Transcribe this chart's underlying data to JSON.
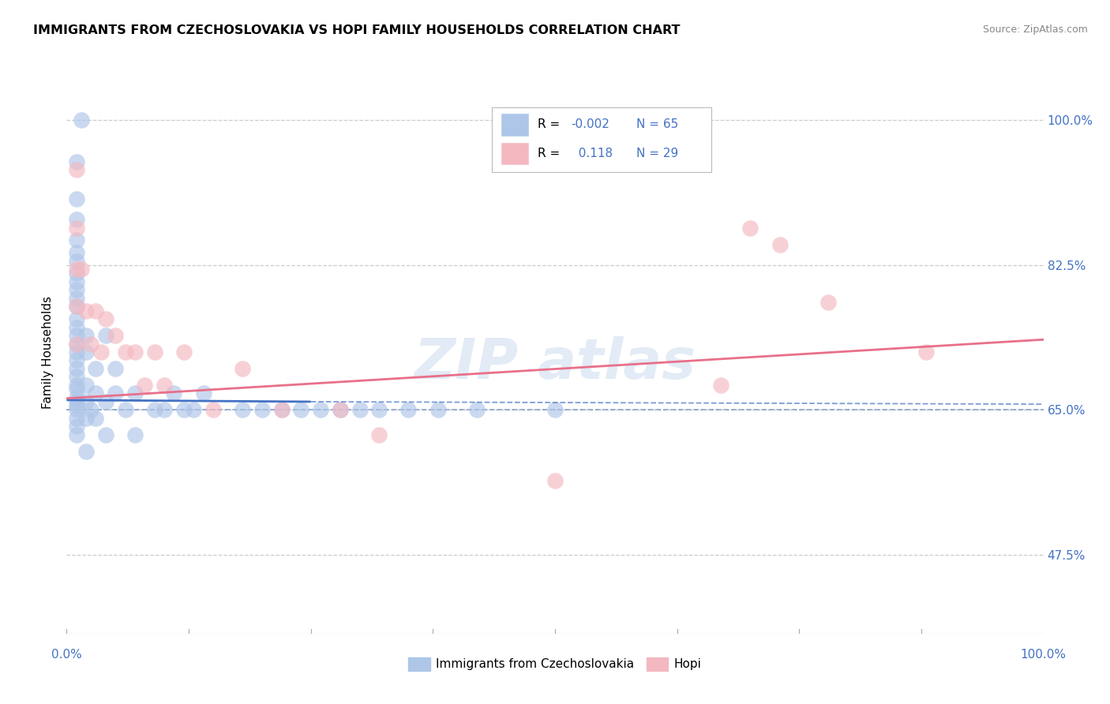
{
  "title": "IMMIGRANTS FROM CZECHOSLOVAKIA VS HOPI FAMILY HOUSEHOLDS CORRELATION CHART",
  "source": "Source: ZipAtlas.com",
  "ylabel": "Family Households",
  "y_ticks_labels": [
    "47.5%",
    "65.0%",
    "82.5%",
    "100.0%"
  ],
  "y_tick_vals": [
    0.475,
    0.65,
    0.825,
    1.0
  ],
  "xlim": [
    0.0,
    1.0
  ],
  "ylim": [
    0.38,
    1.06
  ],
  "legend_blue_label": "Immigrants from Czechoslovakia",
  "legend_pink_label": "Hopi",
  "blue_color": "#aec6e8",
  "pink_color": "#f4b8c1",
  "blue_line_color": "#4472c4",
  "pink_line_color": "#e8708a",
  "dashed_line_color": "#4472c4",
  "watermark_color": "#c0d4ec",
  "background_color": "#ffffff",
  "grid_color": "#c8c8c8",
  "blue_scatter_x": [
    0.015,
    0.01,
    0.01,
    0.01,
    0.01,
    0.01,
    0.01,
    0.01,
    0.01,
    0.01,
    0.01,
    0.01,
    0.01,
    0.01,
    0.01,
    0.01,
    0.01,
    0.01,
    0.01,
    0.01,
    0.01,
    0.01,
    0.01,
    0.01,
    0.01,
    0.01,
    0.01,
    0.01,
    0.01,
    0.02,
    0.02,
    0.02,
    0.02,
    0.02,
    0.02,
    0.025,
    0.03,
    0.03,
    0.03,
    0.04,
    0.04,
    0.04,
    0.05,
    0.05,
    0.06,
    0.07,
    0.07,
    0.09,
    0.1,
    0.11,
    0.12,
    0.13,
    0.14,
    0.18,
    0.2,
    0.22,
    0.24,
    0.26,
    0.28,
    0.3,
    0.32,
    0.35,
    0.38,
    0.42,
    0.5
  ],
  "blue_scatter_y": [
    1.0,
    0.95,
    0.905,
    0.88,
    0.855,
    0.84,
    0.83,
    0.815,
    0.805,
    0.795,
    0.785,
    0.775,
    0.76,
    0.75,
    0.74,
    0.73,
    0.72,
    0.71,
    0.7,
    0.69,
    0.68,
    0.675,
    0.665,
    0.66,
    0.655,
    0.65,
    0.64,
    0.63,
    0.62,
    0.74,
    0.72,
    0.68,
    0.66,
    0.64,
    0.6,
    0.65,
    0.7,
    0.67,
    0.64,
    0.74,
    0.66,
    0.62,
    0.7,
    0.67,
    0.65,
    0.67,
    0.62,
    0.65,
    0.65,
    0.67,
    0.65,
    0.65,
    0.67,
    0.65,
    0.65,
    0.65,
    0.65,
    0.65,
    0.65,
    0.65,
    0.65,
    0.65,
    0.65,
    0.65,
    0.65
  ],
  "pink_scatter_x": [
    0.01,
    0.01,
    0.01,
    0.01,
    0.01,
    0.015,
    0.02,
    0.025,
    0.03,
    0.035,
    0.04,
    0.05,
    0.06,
    0.07,
    0.08,
    0.09,
    0.1,
    0.12,
    0.15,
    0.18,
    0.22,
    0.28,
    0.32,
    0.5,
    0.67,
    0.7,
    0.73,
    0.78,
    0.88
  ],
  "pink_scatter_y": [
    0.94,
    0.87,
    0.82,
    0.775,
    0.73,
    0.82,
    0.77,
    0.73,
    0.77,
    0.72,
    0.76,
    0.74,
    0.72,
    0.72,
    0.68,
    0.72,
    0.68,
    0.72,
    0.65,
    0.7,
    0.65,
    0.65,
    0.62,
    0.565,
    0.68,
    0.87,
    0.85,
    0.78,
    0.72
  ],
  "blue_line_x": [
    0.0,
    0.25
  ],
  "blue_line_y": [
    0.662,
    0.66
  ],
  "blue_dashed_line_x": [
    0.25,
    1.0
  ],
  "blue_dashed_line_y": [
    0.66,
    0.657
  ],
  "pink_line_x": [
    0.0,
    1.0
  ],
  "pink_line_y": [
    0.664,
    0.735
  ],
  "dashed_line_y": 0.65
}
